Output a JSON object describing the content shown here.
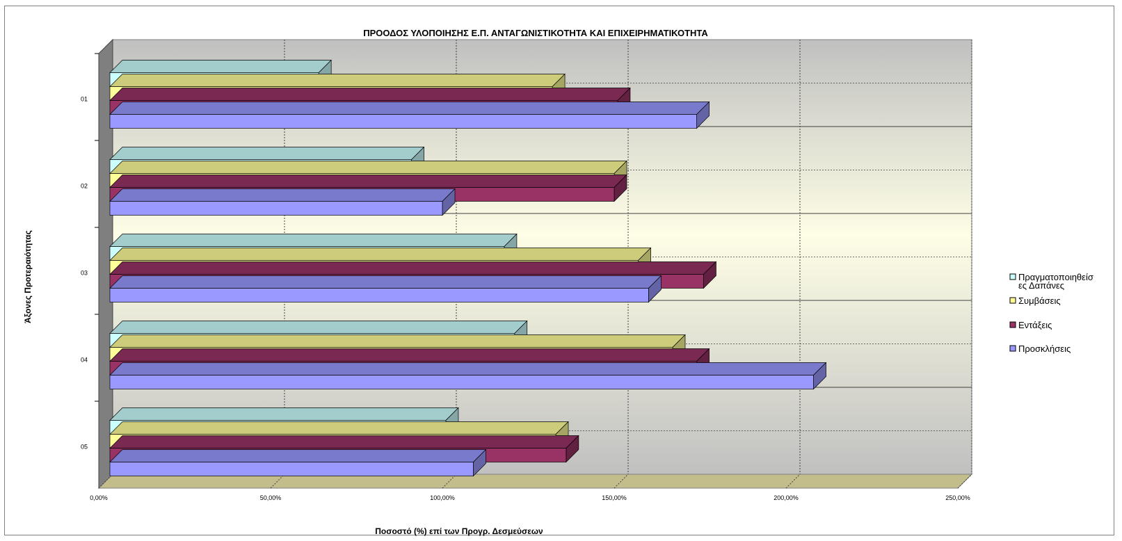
{
  "chart_data": {
    "type": "bar",
    "orientation": "horizontal",
    "three_d": true,
    "title": "ΠΡΟΟΔΟΣ ΥΛΟΠΟΙΗΣΗΣ Ε.Π. ΑΝΤΑΓΩΝΙΣΤΙΚΟΤΗΤΑ ΚΑΙ ΕΠΙΧΕΙΡΗΜΑΤΙΚΟΤΗΤΑ",
    "xlabel": "Ποσοστό (%) επί των Προγρ. Δεσμεύσεων",
    "ylabel": "Άξονες Προτεραιότητας",
    "categories": [
      "01",
      "02",
      "03",
      "04",
      "05"
    ],
    "xlim": [
      0,
      250
    ],
    "x_ticks": [
      0,
      50,
      100,
      150,
      200,
      250
    ],
    "x_tick_labels": [
      "0,00%",
      "50,00%",
      "100,00%",
      "150,00%",
      "200,00%",
      "250,00%"
    ],
    "grid": true,
    "legend_position": "right",
    "series": [
      {
        "name": "Πραγματοποιηθείσες Δαπάνες",
        "legend_lines": [
          "Πραγματοποιηθείσ",
          "ες Δαπάνες"
        ],
        "color": "#ccffff",
        "values": [
          64,
          91,
          118,
          121,
          101
        ]
      },
      {
        "name": "Συμβάσεις",
        "legend_lines": [
          "Συμβάσεις"
        ],
        "color": "#ffff99",
        "values": [
          132,
          150,
          157,
          167,
          133
        ]
      },
      {
        "name": "Εντάξεις",
        "legend_lines": [
          "Εντάξεις"
        ],
        "color": "#993366",
        "values": [
          151,
          150,
          176,
          174,
          136
        ]
      },
      {
        "name": "Προσκλήσεις",
        "legend_lines": [
          "Προσκλήσεις"
        ],
        "color": "#9999ff",
        "values": [
          174,
          100,
          160,
          208,
          109
        ]
      }
    ]
  }
}
